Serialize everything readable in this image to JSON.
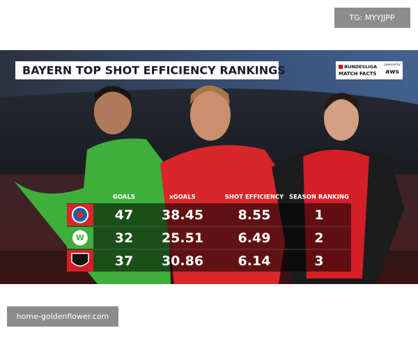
{
  "watermark_top": "TG: MYYJJPP",
  "title": "BAYERN TOP SHOT EFFICIENCY RANKINGS",
  "brand": {
    "line1": "BUNDESLIGA",
    "line2": "MATCH FACTS",
    "powered": "powered by",
    "sponsor": "aws"
  },
  "table": {
    "columns": [
      "GOALS",
      "xGOALS",
      "SHOT EFFICIENCY",
      "SEASON RANKING"
    ],
    "rows": [
      [
        "47",
        "38.45",
        "8.55",
        "1"
      ],
      [
        "32",
        "25.51",
        "6.49",
        "2"
      ],
      [
        "37",
        "30.86",
        "6.14",
        "3"
      ]
    ]
  },
  "watermark_bottom": "home-goldenflower.com"
}
